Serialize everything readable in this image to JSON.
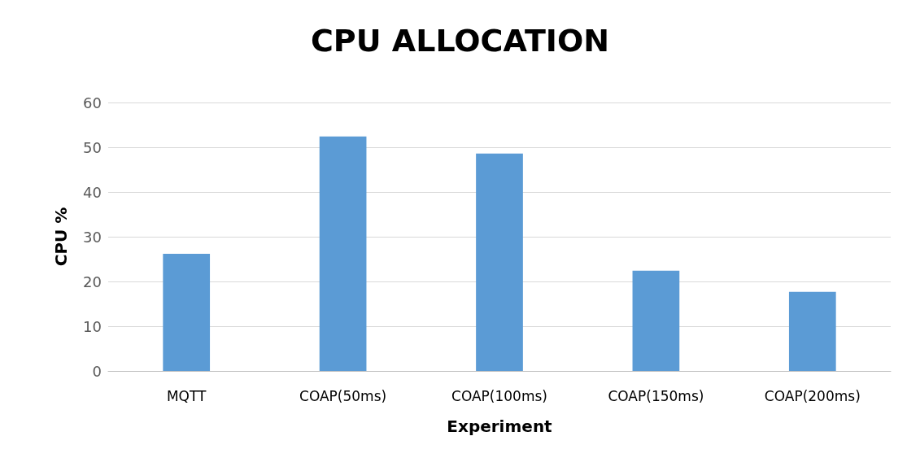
{
  "chart_data": {
    "type": "bar",
    "title": "CPU ALLOCATION",
    "xlabel": "Experiment",
    "ylabel": "CPU %",
    "categories": [
      "MQTT",
      "COAP(50ms)",
      "COAP(100ms)",
      "COAP(150ms)",
      "COAP(200ms)"
    ],
    "values": [
      26.2,
      52.4,
      48.6,
      22.4,
      17.7
    ],
    "color": "#5b9bd5",
    "ylim": [
      0,
      60
    ],
    "yticks": [
      0,
      10,
      20,
      30,
      40,
      50,
      60
    ],
    "grid": "y"
  }
}
